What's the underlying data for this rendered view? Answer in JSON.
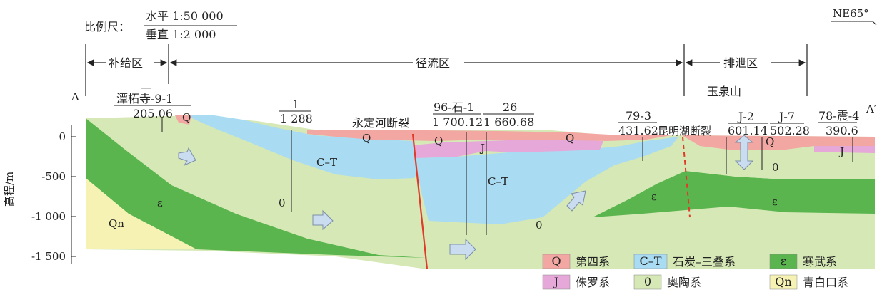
{
  "scale": {
    "label": "比例尺：",
    "horizontal": "水平  1:50 000",
    "vertical": "垂直  1:2 000"
  },
  "direction": "NE65°",
  "zones": {
    "recharge": "补给区",
    "runoff": "径流区",
    "discharge": "排泄区"
  },
  "profile_ends": {
    "start": "A",
    "end": "A′"
  },
  "mountain": "玉泉山",
  "faults": {
    "yongding": "永定河断裂",
    "kunming": "昆明湖断裂"
  },
  "boreholes": [
    {
      "id": "潭柘寺-9-1",
      "elevation": "205.06"
    },
    {
      "id": "1",
      "elevation": "1 288"
    },
    {
      "id": "96-石-1",
      "elevation": "1 700.12"
    },
    {
      "id": "26",
      "elevation": "1 660.68"
    },
    {
      "id": "79-3",
      "elevation": "431.62"
    },
    {
      "id": "J-2",
      "elevation": "601.14"
    },
    {
      "id": "J-7",
      "elevation": "502.28"
    },
    {
      "id": "78-震-4",
      "elevation": "390.6"
    }
  ],
  "axis": {
    "label": "高程/m",
    "ticks": [
      "0",
      "-500",
      "-1 000",
      "-1 500"
    ]
  },
  "unit_labels": {
    "q1": "Q",
    "q2": "Q",
    "q3": "Q",
    "q4": "Q",
    "q5": "Q",
    "ct1": "C–T",
    "ct2": "C–T",
    "j1": "J",
    "j2": "J",
    "o1": "0",
    "o2": "0",
    "o3": "0",
    "e1": "ε",
    "e2": "ε",
    "e3": "ε",
    "qn": "Qn"
  },
  "legend": [
    {
      "symbol": "Q",
      "label": "第四系",
      "color": "#f3a7a3"
    },
    {
      "symbol": "C–T",
      "label": "石炭–三叠系",
      "color": "#a9dcf2"
    },
    {
      "symbol": "ε",
      "label": "寒武系",
      "color": "#5ab54e"
    },
    {
      "symbol": "J",
      "label": "侏罗系",
      "color": "#e5a8d8"
    },
    {
      "symbol": "0",
      "label": "奥陶系",
      "color": "#d5e8b5"
    },
    {
      "symbol": "Qn",
      "label": "青白口系",
      "color": "#f5f2b4"
    }
  ],
  "colors": {
    "quaternary": "#f3a7a3",
    "carboniferous_triassic": "#a9dcf2",
    "cambrian": "#5ab54e",
    "jurassic": "#e5a8d8",
    "ordovician": "#d5e8b5",
    "qingbaikou": "#f5f2b4",
    "fault": "#e03a2a",
    "flow_arrow": "#c9dcf0"
  }
}
